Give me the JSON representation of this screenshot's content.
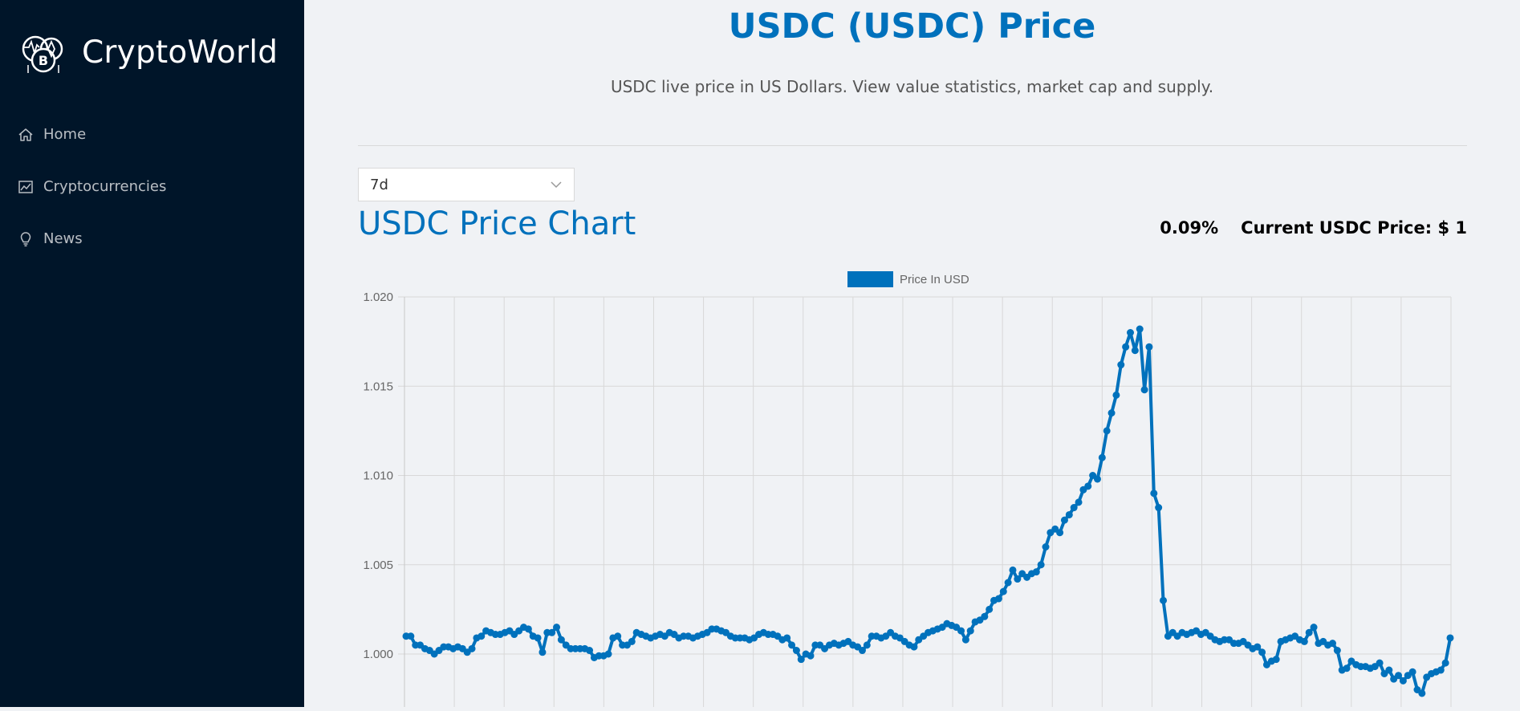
{
  "sidebar": {
    "brand": "CryptoWorld",
    "logo_icon": "crypto-coins-logo",
    "items": [
      {
        "label": "Home",
        "icon": "home-icon"
      },
      {
        "label": "Cryptocurrencies",
        "icon": "line-chart-icon"
      },
      {
        "label": "News",
        "icon": "bulb-icon"
      }
    ]
  },
  "main": {
    "title": "USDC (USDC) Price",
    "subtitle": "USDC live price in US Dollars. View value statistics, market cap and supply.",
    "period_select": {
      "value": "7d"
    },
    "chart_title": "USDC Price Chart",
    "change": "0.09%",
    "current_price": "Current USDC Price: $ 1"
  },
  "colors": {
    "sidebar_bg": "#001529",
    "accent": "#0071bc",
    "page_bg": "#f0f2f5"
  },
  "chart_data": {
    "type": "line",
    "title": "",
    "xlabel": "",
    "ylabel": "",
    "ylim": [
      0.9975,
      1.02
    ],
    "yticks": [
      "1.020",
      "1.015",
      "1.010",
      "1.005",
      "1.000"
    ],
    "legend": {
      "position": "top",
      "entries": [
        "Price In USD"
      ]
    },
    "grid": true,
    "series": [
      {
        "name": "Price In USD",
        "color": "#0071bc",
        "values": [
          1.001,
          1.001,
          1.0005,
          1.0005,
          1.0003,
          1.0002,
          1.0,
          1.0002,
          1.0004,
          1.0004,
          1.0003,
          1.0004,
          1.0003,
          1.0001,
          1.0003,
          1.0009,
          1.001,
          1.0013,
          1.0012,
          1.0011,
          1.0011,
          1.0012,
          1.0013,
          1.0011,
          1.0013,
          1.0015,
          1.0014,
          1.001,
          1.0009,
          1.0001,
          1.0012,
          1.0012,
          1.0015,
          1.0008,
          1.0005,
          1.0003,
          1.0003,
          1.0003,
          1.0003,
          1.0002,
          0.9998,
          0.9999,
          0.9999,
          1.0,
          1.0009,
          1.001,
          1.0005,
          1.0005,
          1.0007,
          1.0012,
          1.0011,
          1.001,
          1.0009,
          1.001,
          1.0011,
          1.001,
          1.0012,
          1.0011,
          1.0009,
          1.001,
          1.001,
          1.0009,
          1.001,
          1.0011,
          1.0012,
          1.0014,
          1.0014,
          1.0013,
          1.0012,
          1.001,
          1.0009,
          1.0009,
          1.0009,
          1.0008,
          1.0009,
          1.0011,
          1.0012,
          1.0011,
          1.0011,
          1.001,
          1.0008,
          1.0009,
          1.0005,
          1.0002,
          0.9997,
          1.0,
          0.9999,
          1.0005,
          1.0005,
          1.0003,
          1.0005,
          1.0006,
          1.0005,
          1.0006,
          1.0007,
          1.0005,
          1.0004,
          1.0002,
          1.0005,
          1.001,
          1.001,
          1.0009,
          1.001,
          1.0012,
          1.001,
          1.0009,
          1.0007,
          1.0005,
          1.0004,
          1.0008,
          1.001,
          1.0012,
          1.0013,
          1.0014,
          1.0015,
          1.0017,
          1.0016,
          1.0015,
          1.0013,
          1.0008,
          1.0013,
          1.0018,
          1.0019,
          1.0021,
          1.0025,
          1.003,
          1.0031,
          1.0035,
          1.004,
          1.0047,
          1.0042,
          1.0045,
          1.0043,
          1.0045,
          1.0046,
          1.005,
          1.006,
          1.0068,
          1.007,
          1.0068,
          1.0075,
          1.0078,
          1.0082,
          1.0085,
          1.0092,
          1.0094,
          1.01,
          1.0098,
          1.011,
          1.0125,
          1.0135,
          1.0145,
          1.0162,
          1.0172,
          1.018,
          1.017,
          1.0182,
          1.0148,
          1.0172,
          1.009,
          1.0082,
          1.003,
          1.001,
          1.0012,
          1.001,
          1.0012,
          1.0011,
          1.0012,
          1.0013,
          1.0011,
          1.0012,
          1.001,
          1.0008,
          1.0007,
          1.0008,
          1.0008,
          1.0006,
          1.0006,
          1.0007,
          1.0005,
          1.0003,
          1.0004,
          1.0001,
          0.9994,
          0.9996,
          0.9997,
          1.0007,
          1.0008,
          1.0009,
          1.001,
          1.0008,
          1.0007,
          1.0012,
          1.0015,
          1.0006,
          1.0007,
          1.0005,
          1.0006,
          1.0002,
          0.9991,
          0.9992,
          0.9996,
          0.9994,
          0.9993,
          0.9993,
          0.9992,
          0.9993,
          0.9995,
          0.9989,
          0.9991,
          0.9986,
          0.9988,
          0.9985,
          0.9988,
          0.999,
          0.998,
          0.9978,
          0.9987,
          0.9989,
          0.999,
          0.9991,
          0.9995,
          1.0009
        ]
      }
    ]
  }
}
